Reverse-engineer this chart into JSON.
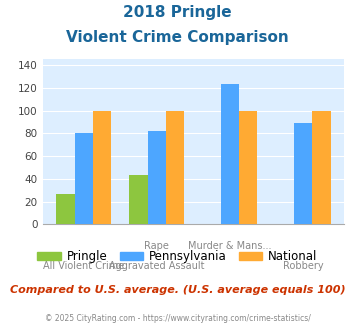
{
  "title_line1": "2018 Pringle",
  "title_line2": "Violent Crime Comparison",
  "top_labels": [
    "",
    "Rape",
    "Murder & Mans...",
    ""
  ],
  "bot_labels": [
    "All Violent Crime",
    "Aggravated Assault",
    "",
    "Robbery"
  ],
  "pringle": [
    27,
    43,
    0,
    0
  ],
  "pennsylvania": [
    80,
    82,
    123,
    89
  ],
  "national": [
    100,
    100,
    100,
    100
  ],
  "bar_width": 0.25,
  "ylim": [
    0,
    145
  ],
  "yticks": [
    0,
    20,
    40,
    60,
    80,
    100,
    120,
    140
  ],
  "color_pringle": "#8dc63f",
  "color_pennsylvania": "#4da6ff",
  "color_national": "#ffaa33",
  "bg_color": "#ddeeff",
  "title_color": "#1a6699",
  "subtitle_text": "Compared to U.S. average. (U.S. average equals 100)",
  "subtitle_color": "#cc3300",
  "footer_text": "© 2025 CityRating.com - https://www.cityrating.com/crime-statistics/",
  "footer_color": "#888888",
  "legend_labels": [
    "Pringle",
    "Pennsylvania",
    "National"
  ]
}
